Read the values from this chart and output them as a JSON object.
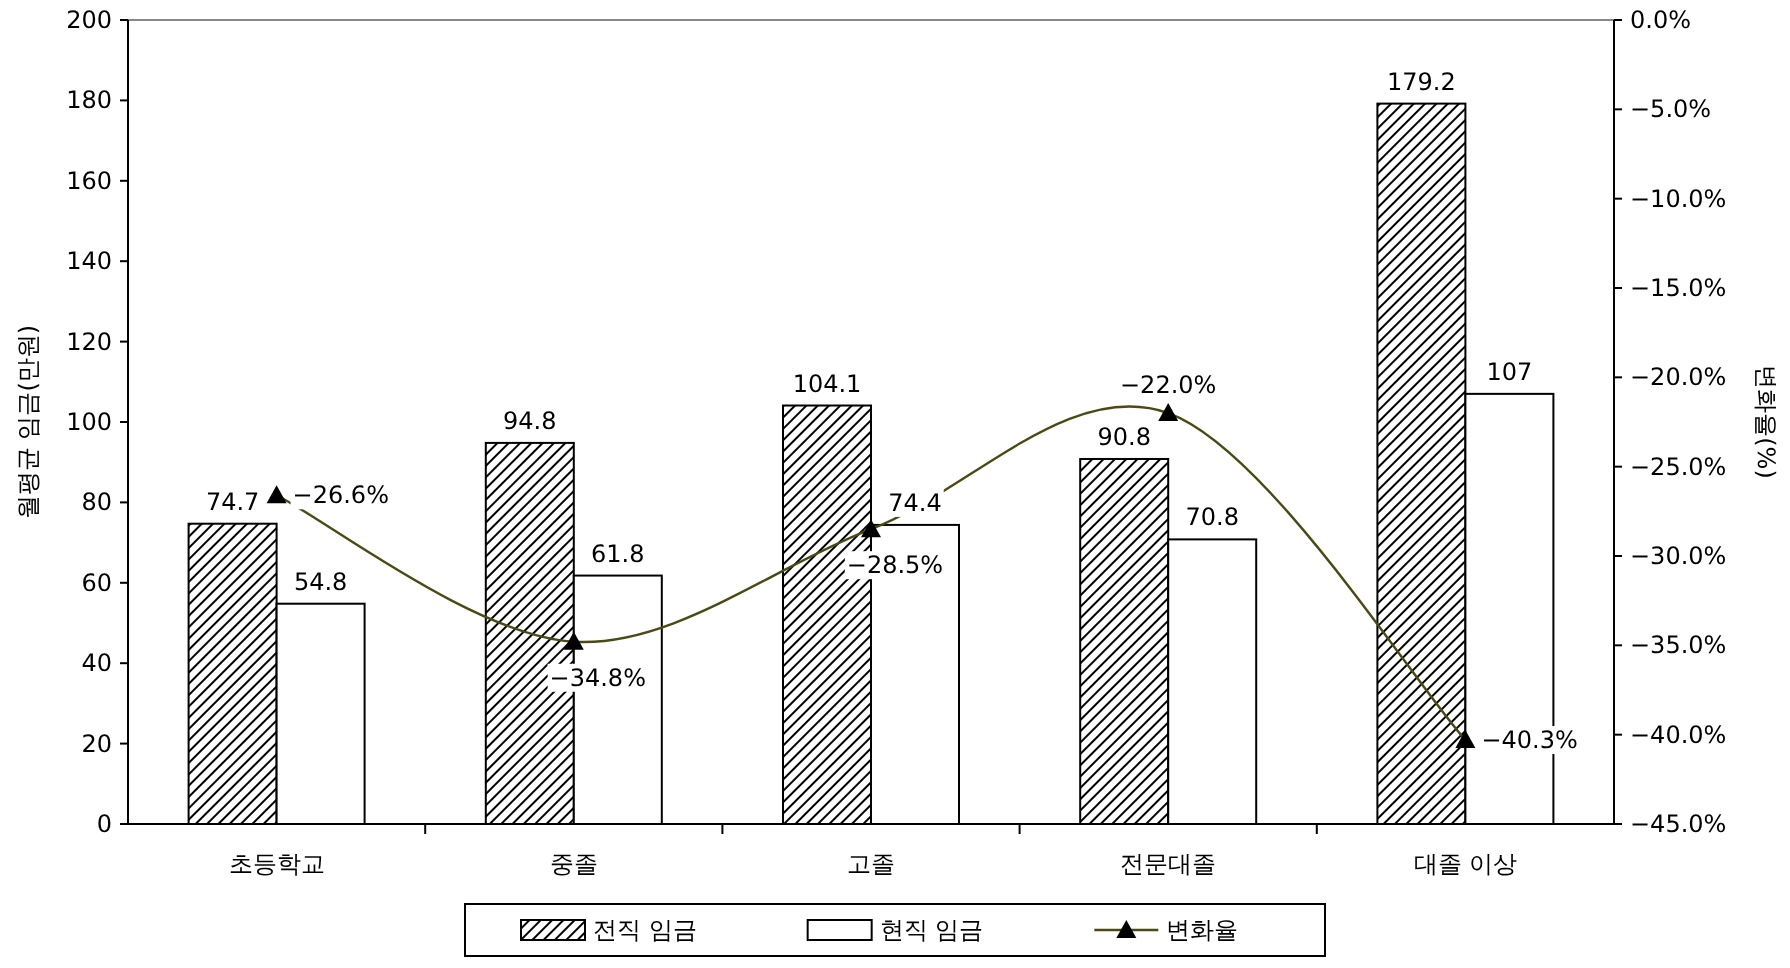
{
  "chart_data": {
    "type": "bar",
    "categories": [
      "초등학교",
      "중졸",
      "고졸",
      "전문대졸",
      "대졸 이상"
    ],
    "ylabel": "월평균 임금(만원)",
    "y2label": "변화율(%)",
    "ylim": [
      0,
      200
    ],
    "yticks": [
      0,
      20,
      40,
      60,
      80,
      100,
      120,
      140,
      160,
      180,
      200
    ],
    "y2lim": [
      -45,
      0
    ],
    "y2ticks": [
      {
        "value": 0,
        "label": "0.0%"
      },
      {
        "value": -5,
        "label": "−5.0%"
      },
      {
        "value": -10,
        "label": "−10.0%"
      },
      {
        "value": -15,
        "label": "−15.0%"
      },
      {
        "value": -20,
        "label": "−20.0%"
      },
      {
        "value": -25,
        "label": "−25.0%"
      },
      {
        "value": -30,
        "label": "−30.0%"
      },
      {
        "value": -35,
        "label": "−35.0%"
      },
      {
        "value": -40,
        "label": "−40.0%"
      },
      {
        "value": -45,
        "label": "−45.0%"
      }
    ],
    "legend": "bottom",
    "series": [
      {
        "name": "전직 임금",
        "color": "#000000",
        "values": [
          74.7,
          94.8,
          104.1,
          90.8,
          179.2
        ],
        "value_labels": [
          "74.7",
          "94.8",
          "104.1",
          "90.8",
          "179.2"
        ]
      },
      {
        "name": "현직 임금",
        "color": "#ffffff",
        "values": [
          54.8,
          61.8,
          74.4,
          70.8,
          107
        ],
        "value_labels": [
          "54.8",
          "61.8",
          "74.4",
          "70.8",
          "107"
        ]
      },
      {
        "name": "변화율",
        "type": "line",
        "axis": "y2",
        "color": "#4b4a14",
        "marker": "triangle",
        "values": [
          -26.6,
          -34.8,
          -28.5,
          -22.0,
          -40.3
        ],
        "value_labels": [
          "−26.6%",
          "−34.8%",
          "−28.5%",
          "−22.0%",
          "−40.3%"
        ]
      }
    ]
  }
}
